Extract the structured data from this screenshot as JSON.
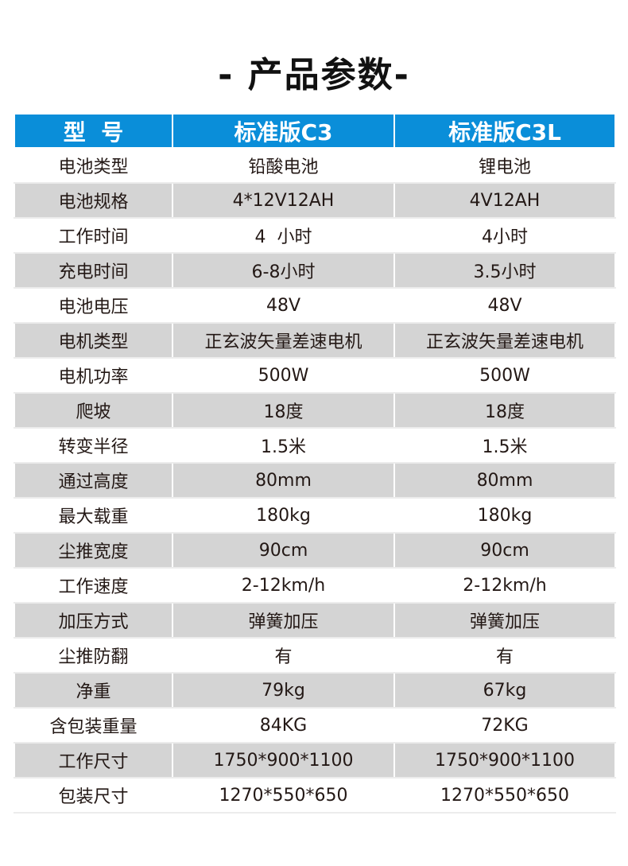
{
  "title": "- 产品参数-",
  "header": [
    "型  号",
    "标准版C3",
    "标准版C3L"
  ],
  "accent_color": "#0a8ed9",
  "rows": [
    [
      "电池类型",
      "铅酸电池",
      "锂电池"
    ],
    [
      "电池规格",
      "4*12V12AH",
      "4V12AH"
    ],
    [
      "工作时间",
      "4  小时",
      "4小时"
    ],
    [
      "充电时间",
      "6-8小时",
      "3.5小时"
    ],
    [
      "电池电压",
      "48V",
      "48V"
    ],
    [
      "电机类型",
      "正玄波矢量差速电机",
      "正玄波矢量差速电机"
    ],
    [
      "电机功率",
      "500W",
      "500W"
    ],
    [
      "爬坡",
      "18度",
      "18度"
    ],
    [
      "转变半径",
      "1.5米",
      "1.5米"
    ],
    [
      "通过高度",
      "80mm",
      "80mm"
    ],
    [
      "最大载重",
      "180kg",
      "180kg"
    ],
    [
      "尘推宽度",
      "90cm",
      "90cm"
    ],
    [
      "工作速度",
      "2-12km/h",
      "2-12km/h"
    ],
    [
      "加压方式",
      "弹簧加压",
      "弹簧加压"
    ],
    [
      "尘推防翻",
      "有",
      "有"
    ],
    [
      "净重",
      "79kg",
      "67kg"
    ],
    [
      "含包装重量",
      "84KG",
      "72KG"
    ],
    [
      "工作尺寸",
      "1750*900*1100",
      "1750*900*1100"
    ],
    [
      "包装尺寸",
      "1270*550*650",
      "1270*550*650"
    ]
  ]
}
